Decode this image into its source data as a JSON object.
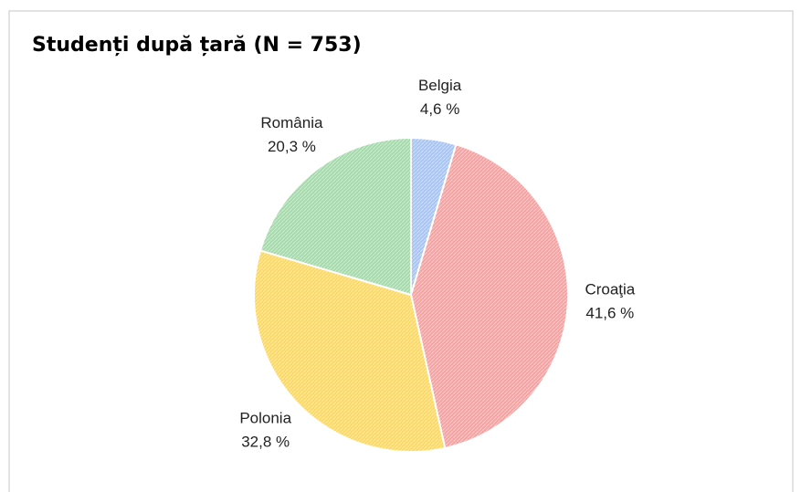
{
  "chart_data": {
    "type": "pie",
    "title": "Studenți după țară (N = 753)",
    "categories": [
      "Belgia",
      "Croaţia",
      "Polonia",
      "România"
    ],
    "values": [
      4.6,
      41.6,
      32.8,
      20.3
    ],
    "value_labels": [
      "4,6 %",
      "41,6 %",
      "32,8 %",
      "20,3 %"
    ],
    "colors": [
      "#a9c4f0",
      "#f2a3a3",
      "#fbd86a",
      "#a8d9ad"
    ]
  }
}
